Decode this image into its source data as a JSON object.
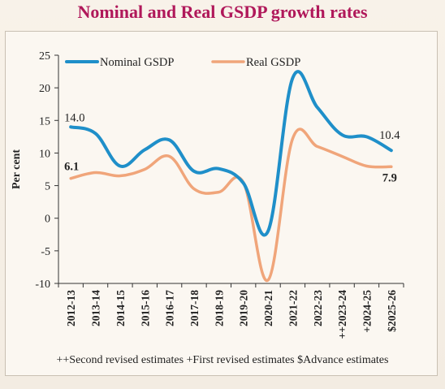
{
  "chart_data": {
    "type": "line",
    "title": "Nominal and Real GSDP growth rates",
    "ylabel": "Per cent",
    "xlabel": "",
    "ylim": [
      -10,
      25
    ],
    "yticks": [
      25,
      20,
      15,
      10,
      5,
      0,
      -5,
      -10
    ],
    "categories": [
      "2012-13",
      "2013-14",
      "2014-15",
      "2015-16",
      "2016-17",
      "2017-18",
      "2018-19",
      "2019-20",
      "2020-21",
      "2021-22",
      "2022-23",
      "++2023-24",
      "+2024-25",
      "$2025-26"
    ],
    "series": [
      {
        "name": "Nominal GSDP",
        "color": "#1f8fc9",
        "values": [
          14.0,
          13.0,
          8.0,
          10.5,
          12.0,
          7.2,
          7.6,
          5.4,
          -2.0,
          21.5,
          17.0,
          12.8,
          12.5,
          10.4
        ]
      },
      {
        "name": "Real GSDP",
        "color": "#f0a57a",
        "values": [
          6.1,
          7.0,
          6.5,
          7.5,
          9.5,
          4.5,
          4.0,
          5.5,
          -9.5,
          12.2,
          11.0,
          9.5,
          8.0,
          7.9
        ]
      }
    ],
    "data_labels": [
      {
        "series": "Nominal GSDP",
        "index": 0,
        "text": "14.0"
      },
      {
        "series": "Nominal GSDP",
        "index": 13,
        "text": "10.4"
      },
      {
        "series": "Real GSDP",
        "index": 0,
        "text": "6.1"
      },
      {
        "series": "Real GSDP",
        "index": 13,
        "text": "7.9"
      }
    ],
    "legend_position": "top-left",
    "grid": false
  },
  "footnote": "++Second revised estimates  +First revised estimates  $Advance estimates"
}
